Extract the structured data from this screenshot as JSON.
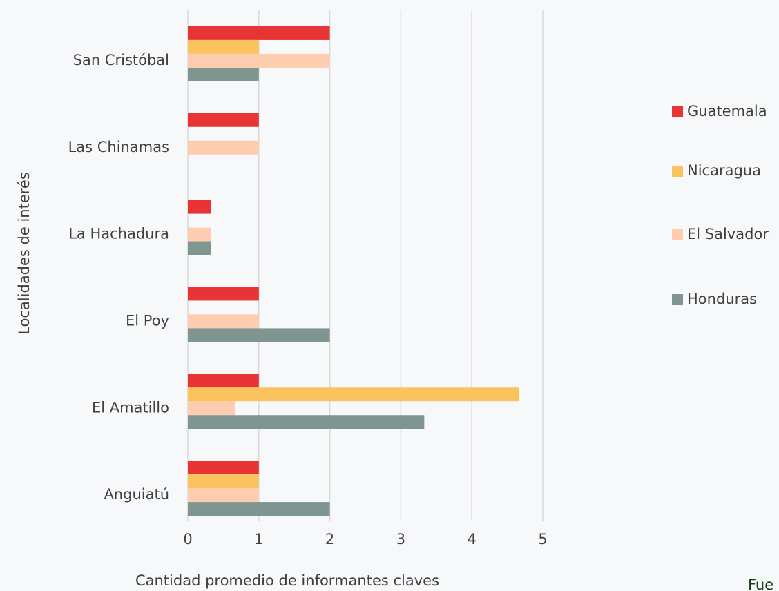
{
  "chart_data": {
    "type": "bar",
    "orientation": "horizontal",
    "categories": [
      "Anguiatú",
      "El Amatillo",
      "El Poy",
      "La Hachadura",
      "Las Chinamas",
      "San Cristóbal"
    ],
    "series": [
      {
        "name": "Guatemala",
        "color": "#e83434",
        "values": [
          1,
          1,
          1,
          0.33,
          1,
          2
        ]
      },
      {
        "name": "Nicaragua",
        "color": "#fbc35e",
        "values": [
          1,
          4.67,
          null,
          null,
          null,
          1
        ]
      },
      {
        "name": "El Salvador",
        "color": "#fecdb0",
        "values": [
          1,
          0.67,
          1,
          0.33,
          1,
          2
        ]
      },
      {
        "name": "Honduras",
        "color": "#7f9590",
        "values": [
          2,
          3.33,
          2,
          0.33,
          null,
          1
        ]
      }
    ],
    "xlim": [
      0,
      5
    ],
    "xticks": [
      0,
      1,
      2,
      3,
      4,
      5
    ],
    "grid": true,
    "x_label": "Cantidad promedio de informantes claves",
    "y_label": "Localidades de interés",
    "legend": "right",
    "note": "Fue"
  }
}
